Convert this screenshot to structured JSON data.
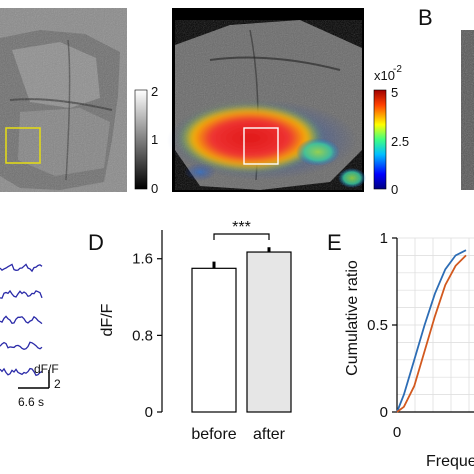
{
  "panels": {
    "B": {
      "letter": "B"
    },
    "D": {
      "letter": "D"
    },
    "E": {
      "letter": "E"
    }
  },
  "colorbar_gray": {
    "ticks": [
      "2",
      "1",
      "0"
    ]
  },
  "colorbar_jet": {
    "exponent": "x10",
    "exponent_power": "-2",
    "ticks": [
      "5",
      "2.5",
      "0"
    ]
  },
  "traces": {
    "scale_y_label": "dF/F",
    "scale_y_value": "2",
    "scale_x_label": "6.6 s",
    "count": 5
  },
  "chart_data": [
    {
      "type": "bar",
      "panel": "D",
      "categories": [
        "before",
        "after"
      ],
      "values": [
        1.5,
        1.67
      ],
      "errors": [
        0.07,
        0.05
      ],
      "colors": [
        "#ffffff",
        "#e6e6e6"
      ],
      "significance": "***",
      "ylabel": "dF/F",
      "ylim": [
        0,
        1.9
      ],
      "yticks": [
        "0",
        "0.8",
        "1.6"
      ]
    },
    {
      "type": "line",
      "panel": "E",
      "ylabel": "Cumulative ratio",
      "xlabel": "Freque",
      "yticks": [
        "0",
        "0.5",
        "1"
      ],
      "xticks": [
        "0"
      ],
      "ylim": [
        0,
        1
      ],
      "grid": true,
      "series": [
        {
          "color": "#2d6db5",
          "x": [
            0,
            0.1,
            0.25,
            0.4,
            0.55,
            0.7,
            0.85,
            1.0
          ],
          "y": [
            0,
            0.1,
            0.3,
            0.5,
            0.68,
            0.82,
            0.9,
            0.93
          ]
        },
        {
          "color": "#d2591f",
          "x": [
            0,
            0.1,
            0.25,
            0.4,
            0.55,
            0.7,
            0.85,
            1.0
          ],
          "y": [
            0,
            0.03,
            0.15,
            0.35,
            0.55,
            0.73,
            0.84,
            0.9
          ]
        }
      ]
    }
  ]
}
